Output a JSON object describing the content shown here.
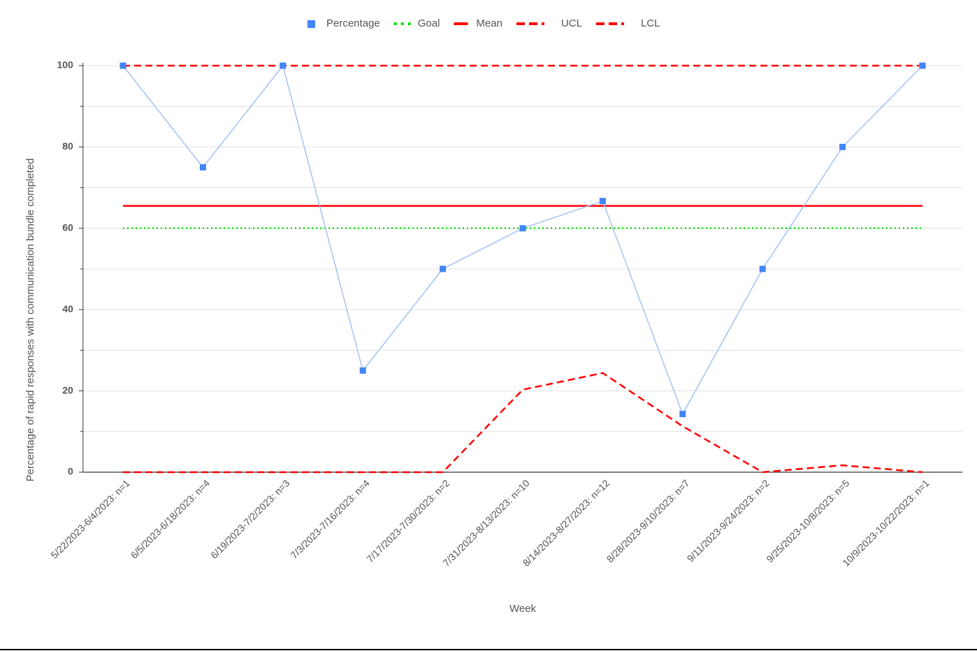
{
  "chart_data": {
    "type": "line",
    "x_label": "Week",
    "y_label": "Percentage of rapid responses with communication bundle completed",
    "categories": [
      "5/22/2023-6/4/2023: n=1",
      "6/5/2023-6/18/2023: n=4",
      "6/19/2023-7/2/2023: n=3",
      "7/3/2023-7/16/2023: n=4",
      "7/17/2023-7/30/2023: n=2",
      "7/31/2023-8/13/2023: n=10",
      "8/14/2023-8/27/2023: n=12",
      "8/28/2023-9/10/2023: n=7",
      "9/11/2023-9/24/2023: n=2",
      "9/25/2023-10/8/2023: n=5",
      "10/9/2023-10/22/2023: n=1"
    ],
    "series": [
      {
        "name": "Percentage",
        "color": "#4285f4",
        "line_color": "#a4c2f4",
        "style": "marker",
        "values": [
          100,
          75,
          100,
          25,
          50,
          60,
          66.7,
          14.3,
          50,
          80,
          100
        ]
      },
      {
        "name": "Goal",
        "color": "#00e600",
        "style": "dotted",
        "values": [
          60,
          60,
          60,
          60,
          60,
          60,
          60,
          60,
          60,
          60,
          60
        ]
      },
      {
        "name": "Mean",
        "color": "#ff0000",
        "style": "solid",
        "values": [
          65.5,
          65.5,
          65.5,
          65.5,
          65.5,
          65.5,
          65.5,
          65.5,
          65.5,
          65.5,
          65.5
        ]
      },
      {
        "name": "UCL",
        "color": "#ff0000",
        "style": "dashed",
        "values": [
          100,
          100,
          100,
          100,
          100,
          100,
          100,
          100,
          100,
          100,
          100
        ]
      },
      {
        "name": "LCL",
        "color": "#ff0000",
        "style": "dashed",
        "values": [
          0,
          0,
          0,
          0,
          0,
          20.3,
          24.4,
          11.3,
          0,
          1.7,
          0
        ]
      }
    ],
    "ylim": [
      0,
      100
    ],
    "yticks": [
      0,
      20,
      40,
      60,
      80,
      100
    ],
    "y_minor_ticks": [
      10,
      30,
      50,
      70,
      90
    ],
    "grid": true,
    "legend": "top"
  }
}
